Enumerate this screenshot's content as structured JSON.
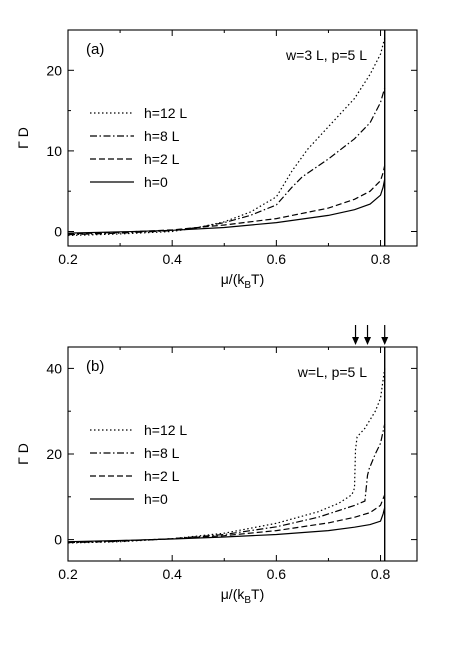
{
  "chart_data": [
    {
      "type": "line",
      "panel_label": "(a)",
      "params_label": "w=3 L, p=5 L",
      "xlabel": "μ/(k_B T)",
      "xlabel_main": "μ/(k",
      "xlabel_sub": "B",
      "xlabel_end": "T)",
      "ylabel": "Γ D",
      "xlim": [
        0.2,
        0.87
      ],
      "ylim": [
        -1.8,
        25
      ],
      "xticks": [
        0.2,
        0.4,
        0.6,
        0.8
      ],
      "xtick_labels": [
        "0.2",
        "0.4",
        "0.6",
        "0.8"
      ],
      "yticks": [
        0,
        10,
        20
      ],
      "ytick_labels": [
        "0",
        "10",
        "20"
      ],
      "vline_x": 0.808,
      "legend_position": "left-middle",
      "series": [
        {
          "name": "h=12 L",
          "dash": "dotted",
          "points": [
            [
              0.2,
              -0.5
            ],
            [
              0.3,
              -0.3
            ],
            [
              0.4,
              0.0
            ],
            [
              0.45,
              0.5
            ],
            [
              0.5,
              1.2
            ],
            [
              0.55,
              2.4
            ],
            [
              0.6,
              4.3
            ],
            [
              0.63,
              7.5
            ],
            [
              0.66,
              10.2
            ],
            [
              0.7,
              13.0
            ],
            [
              0.75,
              16.5
            ],
            [
              0.78,
              19.5
            ],
            [
              0.8,
              22.0
            ],
            [
              0.808,
              24.0
            ]
          ]
        },
        {
          "name": "h=8 L",
          "dash": "dashdot",
          "points": [
            [
              0.2,
              -0.4
            ],
            [
              0.3,
              -0.2
            ],
            [
              0.4,
              0.1
            ],
            [
              0.45,
              0.5
            ],
            [
              0.5,
              1.1
            ],
            [
              0.55,
              2.0
            ],
            [
              0.6,
              3.3
            ],
            [
              0.63,
              5.5
            ],
            [
              0.65,
              6.8
            ],
            [
              0.7,
              9.0
            ],
            [
              0.75,
              11.5
            ],
            [
              0.78,
              13.5
            ],
            [
              0.8,
              16.0
            ],
            [
              0.808,
              17.8
            ]
          ]
        },
        {
          "name": "h=2 L",
          "dash": "dashed",
          "points": [
            [
              0.2,
              -0.3
            ],
            [
              0.3,
              -0.1
            ],
            [
              0.4,
              0.2
            ],
            [
              0.5,
              0.8
            ],
            [
              0.6,
              1.6
            ],
            [
              0.7,
              2.9
            ],
            [
              0.75,
              4.0
            ],
            [
              0.78,
              5.0
            ],
            [
              0.8,
              6.3
            ],
            [
              0.805,
              7.3
            ],
            [
              0.808,
              8.2
            ]
          ]
        },
        {
          "name": "h=0",
          "dash": "solid",
          "points": [
            [
              0.2,
              -0.2
            ],
            [
              0.3,
              -0.05
            ],
            [
              0.4,
              0.15
            ],
            [
              0.5,
              0.5
            ],
            [
              0.6,
              1.1
            ],
            [
              0.7,
              2.0
            ],
            [
              0.75,
              2.7
            ],
            [
              0.78,
              3.4
            ],
            [
              0.8,
              4.5
            ],
            [
              0.805,
              5.5
            ],
            [
              0.808,
              6.5
            ]
          ]
        }
      ]
    },
    {
      "type": "line",
      "panel_label": "(b)",
      "params_label": "w=L, p=5 L",
      "xlabel": "μ/(k_B T)",
      "xlabel_main": "μ/(k",
      "xlabel_sub": "B",
      "xlabel_end": "T)",
      "ylabel": "Γ D",
      "xlim": [
        0.2,
        0.87
      ],
      "ylim": [
        -5,
        45
      ],
      "xticks": [
        0.2,
        0.4,
        0.6,
        0.8
      ],
      "xtick_labels": [
        "0.2",
        "0.4",
        "0.6",
        "0.8"
      ],
      "yticks": [
        0,
        20,
        40
      ],
      "ytick_labels": [
        "0",
        "20",
        "40"
      ],
      "vline_x": 0.808,
      "arrows_x": [
        0.752,
        0.775,
        0.808
      ],
      "legend_position": "left-middle",
      "series": [
        {
          "name": "h=12 L",
          "dash": "dotted",
          "points": [
            [
              0.2,
              -0.8
            ],
            [
              0.3,
              -0.5
            ],
            [
              0.4,
              0.2
            ],
            [
              0.5,
              1.5
            ],
            [
              0.6,
              3.8
            ],
            [
              0.68,
              6.5
            ],
            [
              0.72,
              8.5
            ],
            [
              0.745,
              10.5
            ],
            [
              0.75,
              12.0
            ],
            [
              0.752,
              21.0
            ],
            [
              0.755,
              24.0
            ],
            [
              0.77,
              26.0
            ],
            [
              0.79,
              30.0
            ],
            [
              0.8,
              33.0
            ],
            [
              0.808,
              40.0
            ]
          ]
        },
        {
          "name": "h=8 L",
          "dash": "dashdot",
          "points": [
            [
              0.2,
              -0.7
            ],
            [
              0.3,
              -0.4
            ],
            [
              0.4,
              0.2
            ],
            [
              0.5,
              1.2
            ],
            [
              0.6,
              3.0
            ],
            [
              0.68,
              5.2
            ],
            [
              0.72,
              6.8
            ],
            [
              0.75,
              8.0
            ],
            [
              0.77,
              9.0
            ],
            [
              0.775,
              15.0
            ],
            [
              0.778,
              16.5
            ],
            [
              0.79,
              20.0
            ],
            [
              0.8,
              22.5
            ],
            [
              0.808,
              27.0
            ]
          ]
        },
        {
          "name": "h=2 L",
          "dash": "dashed",
          "points": [
            [
              0.2,
              -0.6
            ],
            [
              0.3,
              -0.3
            ],
            [
              0.4,
              0.2
            ],
            [
              0.5,
              0.9
            ],
            [
              0.6,
              2.1
            ],
            [
              0.7,
              3.9
            ],
            [
              0.75,
              5.2
            ],
            [
              0.78,
              6.3
            ],
            [
              0.8,
              8.0
            ],
            [
              0.808,
              10.5
            ]
          ]
        },
        {
          "name": "h=0",
          "dash": "solid",
          "points": [
            [
              0.2,
              -0.5
            ],
            [
              0.3,
              -0.2
            ],
            [
              0.4,
              0.15
            ],
            [
              0.5,
              0.6
            ],
            [
              0.6,
              1.2
            ],
            [
              0.7,
              2.1
            ],
            [
              0.75,
              2.9
            ],
            [
              0.78,
              3.5
            ],
            [
              0.8,
              4.3
            ],
            [
              0.805,
              6.0
            ],
            [
              0.808,
              7.5
            ]
          ]
        }
      ]
    }
  ]
}
